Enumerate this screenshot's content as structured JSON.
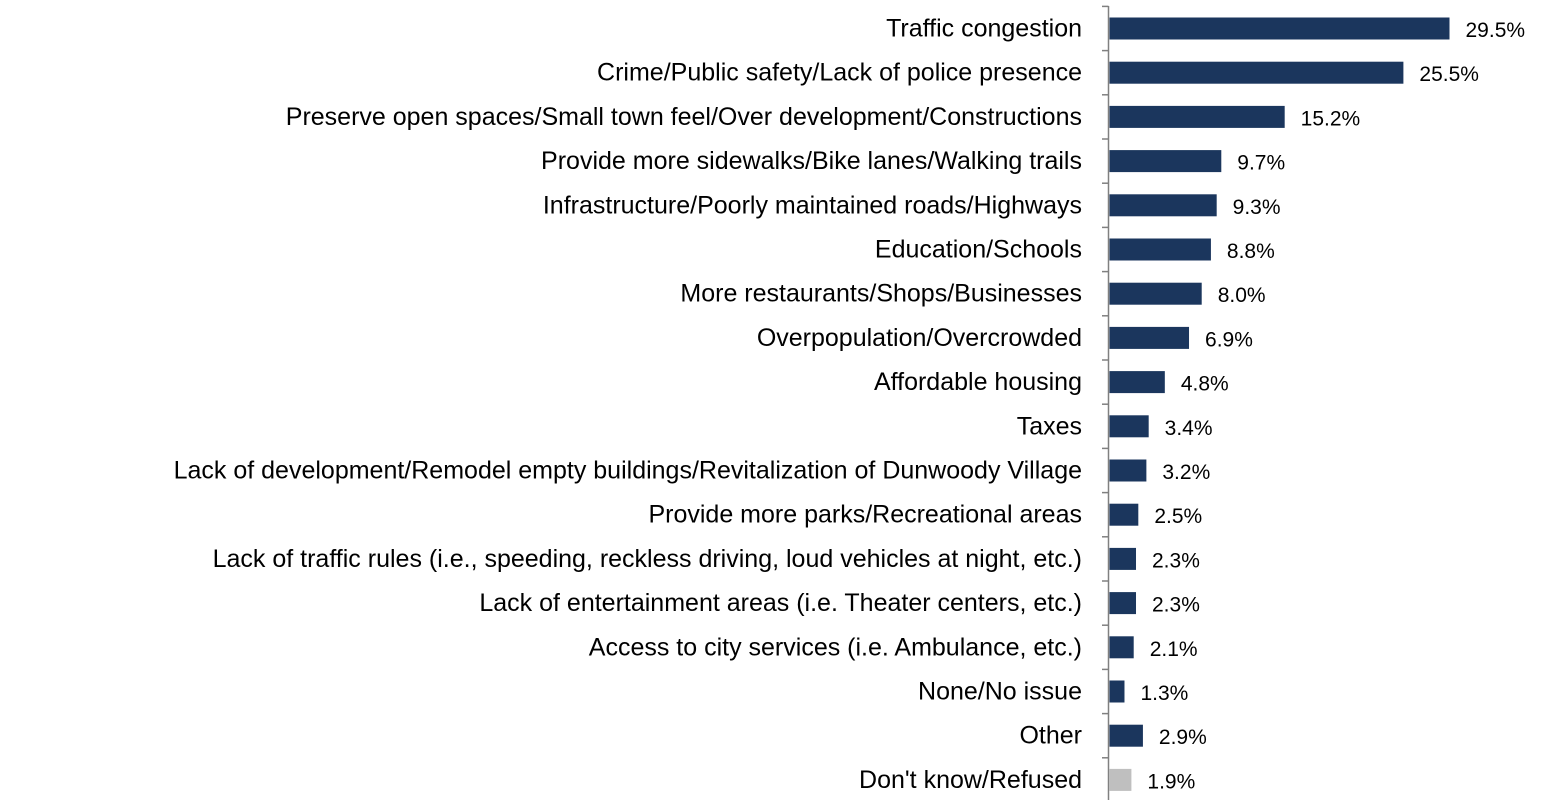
{
  "chart_data": {
    "type": "bar",
    "orientation": "horizontal",
    "title": "",
    "xlabel": "",
    "ylabel": "",
    "xlim": [
      0,
      30
    ],
    "grid": false,
    "legend": "none",
    "value_format": "percent_one_decimal",
    "categories": [
      "Traffic congestion",
      "Crime/Public safety/Lack of police presence",
      "Preserve open spaces/Small town feel/Over development/Constructions",
      "Provide more sidewalks/Bike lanes/Walking trails",
      "Infrastructure/Poorly maintained roads/Highways",
      "Education/Schools",
      "More restaurants/Shops/Businesses",
      "Overpopulation/Overcrowded",
      "Affordable housing",
      "Taxes",
      "Lack of development/Remodel empty buildings/Revitalization of Dunwoody Village",
      "Provide more parks/Recreational areas",
      "Lack of traffic rules (i.e., speeding, reckless driving, loud vehicles at night, etc.)",
      "Lack of entertainment areas (i.e. Theater centers, etc.)",
      "Access to city services (i.e. Ambulance, etc.)",
      "None/No issue",
      "Other",
      "Don't know/Refused"
    ],
    "values": [
      29.5,
      25.5,
      15.2,
      9.7,
      9.3,
      8.8,
      8.0,
      6.9,
      4.8,
      3.4,
      3.2,
      2.5,
      2.3,
      2.3,
      2.1,
      1.3,
      2.9,
      1.9
    ],
    "value_labels": [
      "29.5%",
      "25.5%",
      "15.2%",
      "9.7%",
      "9.3%",
      "8.8%",
      "8.0%",
      "6.9%",
      "4.8%",
      "3.4%",
      "3.2%",
      "2.5%",
      "2.3%",
      "2.3%",
      "2.1%",
      "1.3%",
      "2.9%",
      "1.9%"
    ],
    "bar_colors": [
      "#1b365d",
      "#1b365d",
      "#1b365d",
      "#1b365d",
      "#1b365d",
      "#1b365d",
      "#1b365d",
      "#1b365d",
      "#1b365d",
      "#1b365d",
      "#1b365d",
      "#1b365d",
      "#1b365d",
      "#1b365d",
      "#1b365d",
      "#1b365d",
      "#1b365d",
      "#bfbfbf"
    ],
    "axis_color": "#808080"
  }
}
